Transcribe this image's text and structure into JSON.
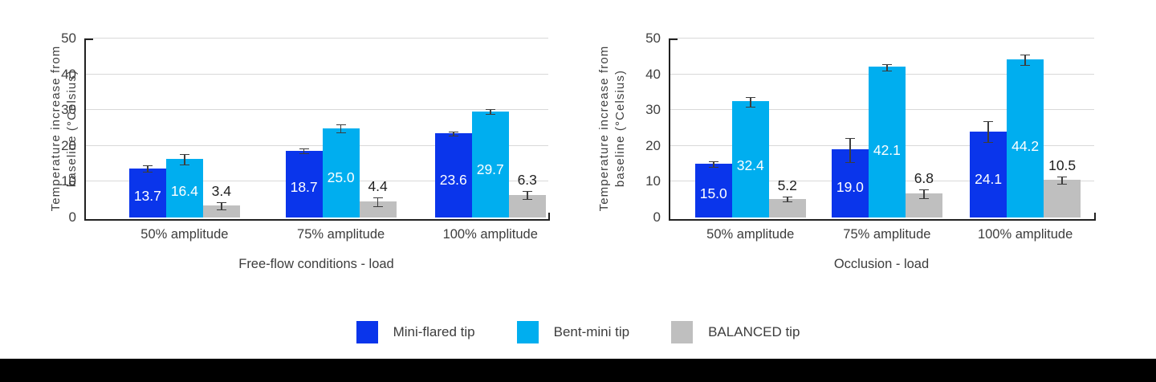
{
  "page": {
    "background_color": "#ffffff",
    "footer_bar_color": "#000000"
  },
  "colors": {
    "series_blue": "#0A35EB",
    "series_cyan": "#00AEEF",
    "series_gray": "#BFBFBF",
    "axis": "#222222",
    "gridline": "#d9d9d9",
    "text": "#3d3d3d"
  },
  "legend": {
    "position": "bottom-center",
    "items": [
      {
        "label": "Mini-flared tip",
        "color": "#0A35EB"
      },
      {
        "label": "Bent-mini tip",
        "color": "#00AEEF"
      },
      {
        "label": "BALANCED tip",
        "color": "#BFBFBF"
      }
    ]
  },
  "chart_data": [
    {
      "type": "bar",
      "title": "",
      "xlabel": "Free-flow conditions - load",
      "ylabel": "Temperature increase from baseline (°Celsius)",
      "ylabel_lines": "Temperature increase from\nbaseline (°Celsius)",
      "ylim": [
        0,
        50
      ],
      "yticks": [
        0,
        10,
        20,
        30,
        40,
        50
      ],
      "grid": true,
      "categories": [
        "50% amplitude",
        "75% amplitude",
        "100% amplitude"
      ],
      "series": [
        {
          "name": "Mini-flared tip",
          "color": "#0A35EB",
          "label_color": "#ffffff",
          "label_inside": true,
          "values": [
            13.7,
            18.7,
            23.6
          ],
          "errors": [
            0.8,
            0.6,
            0.4
          ]
        },
        {
          "name": "Bent-mini tip",
          "color": "#00AEEF",
          "label_color": "#ffffff",
          "label_inside": true,
          "values": [
            16.4,
            25.0,
            29.7
          ],
          "errors": [
            1.3,
            0.9,
            0.6
          ]
        },
        {
          "name": "BALANCED tip",
          "color": "#BFBFBF",
          "label_color": "#1f1f1f",
          "label_inside": false,
          "values": [
            3.4,
            4.4,
            6.3
          ],
          "errors": [
            0.9,
            1.1,
            1.0
          ]
        }
      ]
    },
    {
      "type": "bar",
      "title": "",
      "xlabel": "Occlusion - load",
      "ylabel": "Temperature increase from baseline (°Celsius)",
      "ylabel_lines": "Temperature increase from\nbaseline (°Celsius)",
      "ylim": [
        0,
        50
      ],
      "yticks": [
        0,
        10,
        20,
        30,
        40,
        50
      ],
      "grid": true,
      "categories": [
        "50% amplitude",
        "75% amplitude",
        "100% amplitude"
      ],
      "series": [
        {
          "name": "Mini-flared tip",
          "color": "#0A35EB",
          "label_color": "#ffffff",
          "label_inside": true,
          "values": [
            15.0,
            19.0,
            24.1
          ],
          "errors": [
            0.6,
            3.2,
            2.8
          ]
        },
        {
          "name": "Bent-mini tip",
          "color": "#00AEEF",
          "label_color": "#ffffff",
          "label_inside": true,
          "values": [
            32.4,
            42.1,
            44.2
          ],
          "errors": [
            1.3,
            0.8,
            1.4
          ]
        },
        {
          "name": "BALANCED tip",
          "color": "#BFBFBF",
          "label_color": "#1f1f1f",
          "label_inside": false,
          "values": [
            5.2,
            6.8,
            10.5
          ],
          "errors": [
            0.6,
            1.1,
            0.9
          ]
        }
      ]
    }
  ]
}
